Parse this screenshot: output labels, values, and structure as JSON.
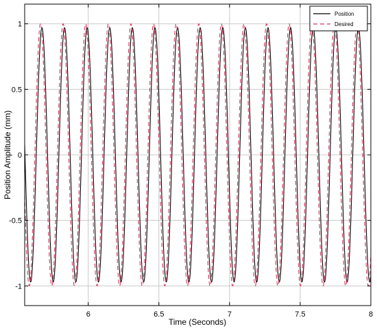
{
  "chart_data": {
    "type": "line",
    "title": "",
    "xlabel": "Time (Seconds)",
    "ylabel": "Position Amplitude (mm)",
    "xlim": [
      5.55,
      8.0
    ],
    "ylim": [
      -1.15,
      1.15
    ],
    "xticks": [
      6,
      6.5,
      7,
      7.5,
      8
    ],
    "xtick_labels": [
      "6",
      "6.5",
      "7",
      "7.5",
      "8"
    ],
    "yticks": [
      -1,
      -0.5,
      0,
      0.5,
      1
    ],
    "ytick_labels": [
      "-1",
      "-0.5",
      "0",
      "0.5",
      "1"
    ],
    "grid": true,
    "legend": "top-right",
    "series": [
      {
        "name": "Position",
        "color": "#000000",
        "style": "solid",
        "function": "sine",
        "frequency_hz": 6.25,
        "amplitude": 0.97,
        "peak_time": 5.672,
        "x_start": 5.55,
        "x_end": 8.0
      },
      {
        "name": "Desired",
        "color": "#d2345a",
        "style": "dashed",
        "function": "sine",
        "frequency_hz": 6.25,
        "amplitude": 1.0,
        "peak_time": 5.662,
        "x_start": 5.55,
        "x_end": 8.0
      }
    ]
  }
}
